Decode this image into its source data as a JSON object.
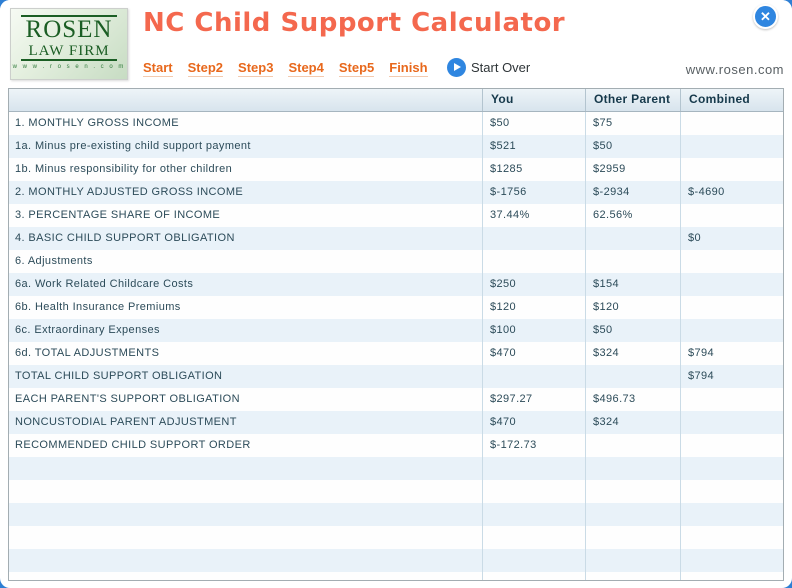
{
  "window": {
    "icons": {
      "close": "✕",
      "play": "play-triangle"
    }
  },
  "header": {
    "title": "NC Child Support Calculator",
    "logo": {
      "name": "ROSEN",
      "subname": "LAW FIRM",
      "url": "w w w . r o s e n . c o m"
    },
    "nav": [
      "Start",
      "Step2",
      "Step3",
      "Step4",
      "Step5",
      "Finish"
    ],
    "start_over_label": "Start Over",
    "website": "www.rosen.com"
  },
  "table": {
    "columns": [
      "",
      "You",
      "Other Parent",
      "Combined"
    ],
    "rows": [
      {
        "label": "1. MONTHLY GROSS INCOME",
        "you": "$50",
        "other": "$75",
        "combined": ""
      },
      {
        "label": "1a. Minus pre-existing child support payment",
        "you": "$521",
        "other": "$50",
        "combined": ""
      },
      {
        "label": "1b. Minus responsibility for other children",
        "you": "$1285",
        "other": "$2959",
        "combined": ""
      },
      {
        "label": "2. MONTHLY ADJUSTED GROSS INCOME",
        "you": "$-1756",
        "other": "$-2934",
        "combined": "$-4690"
      },
      {
        "label": "3. PERCENTAGE SHARE OF INCOME",
        "you": "37.44%",
        "other": "62.56%",
        "combined": ""
      },
      {
        "label": "4. BASIC CHILD SUPPORT OBLIGATION",
        "you": "",
        "other": "",
        "combined": "$0"
      },
      {
        "label": "6. Adjustments",
        "you": "",
        "other": "",
        "combined": ""
      },
      {
        "label": "6a. Work Related Childcare Costs",
        "you": "$250",
        "other": "$154",
        "combined": ""
      },
      {
        "label": "6b. Health Insurance Premiums",
        "you": "$120",
        "other": "$120",
        "combined": ""
      },
      {
        "label": "6c. Extraordinary Expenses",
        "you": "$100",
        "other": "$50",
        "combined": ""
      },
      {
        "label": "6d. TOTAL ADJUSTMENTS",
        "you": "$470",
        "other": "$324",
        "combined": "$794"
      },
      {
        "label": "TOTAL CHILD SUPPORT OBLIGATION",
        "you": "",
        "other": "",
        "combined": "$794"
      },
      {
        "label": "EACH PARENT'S SUPPORT OBLIGATION",
        "you": "$297.27",
        "other": "$496.73",
        "combined": ""
      },
      {
        "label": "NONCUSTODIAL PARENT ADJUSTMENT",
        "you": "$470",
        "other": "$324",
        "combined": ""
      },
      {
        "label": "RECOMMENDED CHILD SUPPORT ORDER",
        "you": "$-172.73",
        "other": "",
        "combined": ""
      }
    ],
    "empty_row_count": 6
  },
  "colors": {
    "frame_blue": "#2e7fd4",
    "title_coral": "#f4684e",
    "nav_orange": "#e8681c",
    "logo_green": "#1b5e24",
    "row_alt_blue": "#e9f2f9",
    "header_text": "#16394b",
    "button_blue": "#2f86e0"
  }
}
